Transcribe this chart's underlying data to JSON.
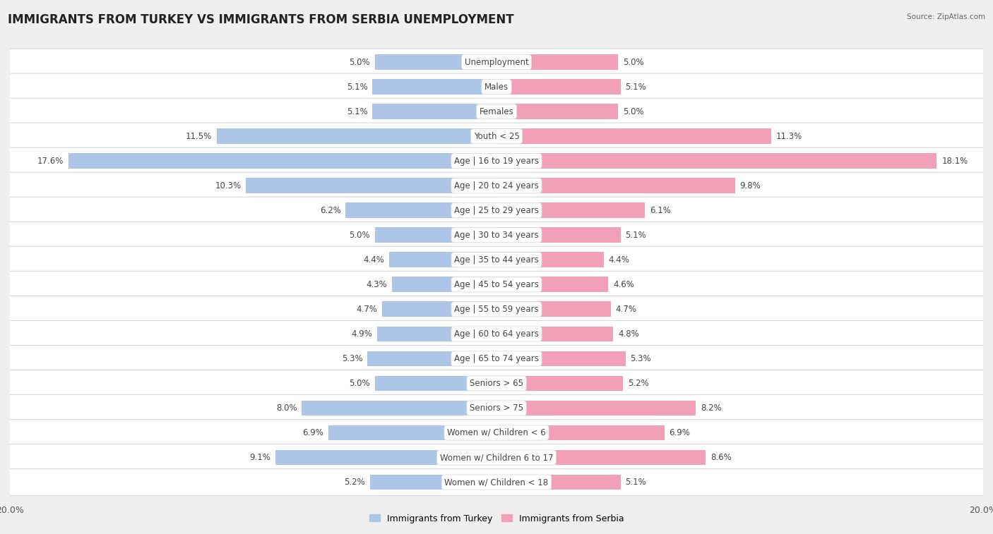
{
  "title": "IMMIGRANTS FROM TURKEY VS IMMIGRANTS FROM SERBIA UNEMPLOYMENT",
  "source": "Source: ZipAtlas.com",
  "categories": [
    "Unemployment",
    "Males",
    "Females",
    "Youth < 25",
    "Age | 16 to 19 years",
    "Age | 20 to 24 years",
    "Age | 25 to 29 years",
    "Age | 30 to 34 years",
    "Age | 35 to 44 years",
    "Age | 45 to 54 years",
    "Age | 55 to 59 years",
    "Age | 60 to 64 years",
    "Age | 65 to 74 years",
    "Seniors > 65",
    "Seniors > 75",
    "Women w/ Children < 6",
    "Women w/ Children 6 to 17",
    "Women w/ Children < 18"
  ],
  "turkey_values": [
    5.0,
    5.1,
    5.1,
    11.5,
    17.6,
    10.3,
    6.2,
    5.0,
    4.4,
    4.3,
    4.7,
    4.9,
    5.3,
    5.0,
    8.0,
    6.9,
    9.1,
    5.2
  ],
  "serbia_values": [
    5.0,
    5.1,
    5.0,
    11.3,
    18.1,
    9.8,
    6.1,
    5.1,
    4.4,
    4.6,
    4.7,
    4.8,
    5.3,
    5.2,
    8.2,
    6.9,
    8.6,
    5.1
  ],
  "turkey_color": "#adc6e8",
  "serbia_color": "#f2a0b8",
  "max_value": 20.0,
  "background_color": "#efefef",
  "row_bg_color": "#ffffff",
  "title_fontsize": 12,
  "label_fontsize": 8.5,
  "value_fontsize": 8.5,
  "legend_label_turkey": "Immigrants from Turkey",
  "legend_label_serbia": "Immigrants from Serbia"
}
